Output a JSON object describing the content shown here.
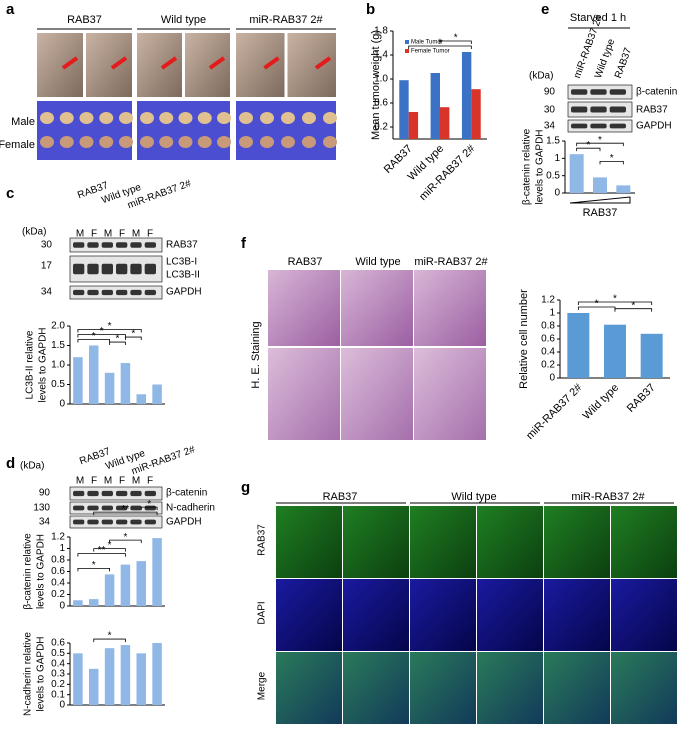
{
  "panel_labels": [
    "a",
    "b",
    "c",
    "d",
    "e",
    "f",
    "g"
  ],
  "panel_a": {
    "groups": [
      "RAB37",
      "Wild type",
      "miR-RAB37 2#"
    ],
    "rows": [
      "Male",
      "Female"
    ]
  },
  "panel_c": {
    "kda": "(kDa)",
    "groups": [
      "RAB37",
      "Wild type",
      "miR-RAB37 2#"
    ],
    "lanes": [
      "M",
      "F",
      "M",
      "F",
      "M",
      "F"
    ],
    "markers": [
      "30",
      "17",
      "34"
    ],
    "bands": [
      "RAB37",
      "LC3B-I",
      "LC3B-II",
      "GAPDH"
    ]
  },
  "panel_d": {
    "kda": "(kDa)",
    "groups": [
      "RAB37",
      "Wild type",
      "miR-RAB37 2#"
    ],
    "lanes": [
      "M",
      "F",
      "M",
      "F",
      "M",
      "F"
    ],
    "markers": [
      "90",
      "130",
      "34"
    ],
    "bands": [
      "β-catenin",
      "N-cadherin",
      "GAPDH"
    ]
  },
  "panel_e": {
    "condition": "Starved 1 h",
    "kda": "(kDa)",
    "lanes": [
      "miR-RAB37 2#",
      "Wild type",
      "RAB37"
    ],
    "markers": [
      "90",
      "30",
      "34"
    ],
    "bands": [
      "β-catenin",
      "RAB37",
      "GAPDH"
    ]
  },
  "panel_f": {
    "columns": [
      "RAB37",
      "Wild type",
      "miR-RAB37 2#"
    ],
    "row": "H. E. Staining"
  },
  "panel_g": {
    "columns": [
      "RAB37",
      "Wild type",
      "miR-RAB37 2#"
    ],
    "rows": [
      "RAB37",
      "DAPI",
      "Merge"
    ]
  },
  "chart_data": [
    {
      "type": "bar",
      "y_label": "Mean tumor weight (g)",
      "categories": [
        "RAB37",
        "Wild type",
        "miR-RAB37 2#"
      ],
      "series": [
        {
          "name": "Male Tumor",
          "color": "#3b72c6",
          "values": [
            0.98,
            1.1,
            1.45
          ]
        },
        {
          "name": "Female Tumor",
          "color": "#d8342a",
          "values": [
            0.45,
            0.53,
            0.83
          ]
        }
      ],
      "ylim": [
        0,
        1.8
      ],
      "yticks": [
        0.2,
        0.6,
        {
          "value": 1,
          "label": "1.0"
        },
        1.4,
        1.8
      ],
      "annotations": [
        "*",
        "*"
      ]
    },
    {
      "type": "bar",
      "y_label": [
        "LC3B-II relative",
        "levels to GAPDH"
      ],
      "categories": [
        null,
        null,
        null,
        null,
        null,
        null
      ],
      "values": [
        1.2,
        1.5,
        0.8,
        1.05,
        0.25,
        0.5
      ],
      "color": "#8fb8e6",
      "ylim": [
        0,
        2
      ],
      "yticks": [
        0,
        0.5,
        {
          "value": 1,
          "label": "1.0"
        },
        1.5,
        {
          "value": 2,
          "label": "2.0"
        }
      ],
      "annotations": [
        "*",
        "*",
        "*",
        "*",
        "*"
      ]
    },
    {
      "type": "bar",
      "y_label": [
        "β-catenin relative",
        "levels to GAPDH"
      ],
      "categories": [
        null,
        null,
        null,
        null,
        null,
        null
      ],
      "values": [
        0.1,
        0.12,
        0.55,
        0.72,
        0.78,
        1.18
      ],
      "color": "#8fb8e6",
      "ylim": [
        0,
        1.2
      ],
      "yticks": [
        0,
        0.2,
        0.4,
        0.6,
        0.8,
        1,
        1.2
      ],
      "annotations": [
        "*",
        "**",
        "*",
        "*",
        "**",
        "*"
      ]
    },
    {
      "type": "bar",
      "y_label": [
        "N-cadherin relative",
        "levels to GAPDH"
      ],
      "categories": [
        null,
        null,
        null,
        null,
        null,
        null
      ],
      "values": [
        0.5,
        0.35,
        0.55,
        0.58,
        0.5,
        0.6
      ],
      "color": "#8fb8e6",
      "ylim": [
        0,
        0.6
      ],
      "yticks": [
        0,
        0.1,
        0.2,
        0.3,
        0.4,
        0.5,
        0.6
      ],
      "annotations": [
        "*"
      ]
    },
    {
      "type": "bar",
      "y_label": [
        "β-catenin relative",
        "levels to GAPDH"
      ],
      "x_label": "RAB37",
      "categories": [
        null,
        null,
        null
      ],
      "values": [
        1.12,
        0.45,
        0.22
      ],
      "color": "#8fb8e6",
      "ylim": [
        0,
        1.5
      ],
      "yticks": [
        0,
        0.5,
        1,
        1.5
      ],
      "annotations": [
        "*",
        "*",
        "*"
      ]
    },
    {
      "type": "bar",
      "y_label": "Relative cell number",
      "categories": [
        "miR-RAB37 2#",
        "Wild type",
        "RAB37"
      ],
      "values": [
        1,
        0.82,
        0.68
      ],
      "color": "#5b9bd5",
      "ylim": [
        0,
        1.2
      ],
      "yticks": [
        0,
        0.2,
        0.4,
        0.6,
        0.8,
        1,
        1.2
      ],
      "annotations": [
        "*",
        "*",
        "*"
      ]
    }
  ]
}
